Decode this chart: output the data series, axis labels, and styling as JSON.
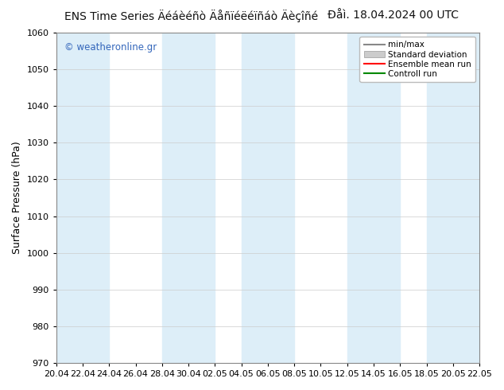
{
  "title_left": "ENS Time Series Äéáèéñò Äåñïéëéïñáò Äèçîñé",
  "title_right": "Ðåì. 18.04.2024 00 UTC",
  "ylabel": "Surface Pressure (hPa)",
  "watermark": "© weatheronline.gr",
  "ylim": [
    970,
    1060
  ],
  "yticks": [
    970,
    980,
    990,
    1000,
    1010,
    1020,
    1030,
    1040,
    1050,
    1060
  ],
  "xtick_labels": [
    "20.04",
    "22.04",
    "24.04",
    "26.04",
    "28.04",
    "30.04",
    "02.05",
    "04.05",
    "06.05",
    "08.05",
    "10.05",
    "12.05",
    "14.05",
    "16.05",
    "18.05",
    "20.05",
    "22.05"
  ],
  "num_xticks": 17,
  "background_color": "#ffffff",
  "plot_bg_color": "#ffffff",
  "stripe_color": "#ddeef8",
  "stripe_indices": [
    0,
    4,
    7,
    11,
    14
  ],
  "legend_labels": [
    "min/max",
    "Standard deviation",
    "Ensemble mean run",
    "Controll run"
  ],
  "legend_colors": [
    "#888888",
    "#cccccc",
    "#ff0000",
    "#008800"
  ],
  "title_fontsize": 10,
  "watermark_color": "#3366bb",
  "ylabel_fontsize": 9,
  "tick_fontsize": 8
}
